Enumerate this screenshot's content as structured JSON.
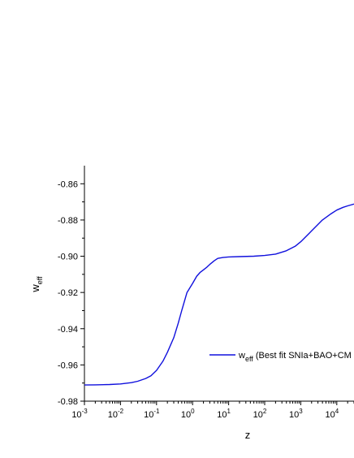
{
  "chart_data": {
    "type": "line",
    "xscale": "log",
    "xlim": [
      0.001,
      30000
    ],
    "ylim": [
      -0.98,
      -0.85
    ],
    "xlabel": "z",
    "ylabel_main": "w",
    "ylabel_sub": "eff",
    "x_tick_exponents": [
      "-3",
      "-2",
      "-1",
      "0",
      "1",
      "2",
      "3",
      "4"
    ],
    "y_ticks": [
      "-0.86",
      "-0.88",
      "-0.90",
      "-0.92",
      "-0.94",
      "-0.96",
      "-0.98"
    ],
    "y_tick_values": [
      -0.86,
      -0.88,
      -0.9,
      -0.92,
      -0.94,
      -0.96,
      -0.98
    ],
    "grid": false,
    "legend": {
      "position": "lower-right",
      "main": "w",
      "sub": "eff",
      "rest": " (Best fit SNIa+BAO+CM"
    },
    "series": [
      {
        "color": "#1010dd",
        "x": [
          0.001,
          0.002,
          0.005,
          0.01,
          0.02,
          0.03,
          0.05,
          0.07,
          0.1,
          0.15,
          0.2,
          0.3,
          0.4,
          0.5,
          0.7,
          1.0,
          1.3,
          1.6,
          2.0,
          2.5,
          3.0,
          4.0,
          5.0,
          7.0,
          10,
          20,
          50,
          100,
          200,
          400,
          700,
          1000,
          2000,
          4000,
          7000,
          10000,
          15000,
          20000,
          30000
        ],
        "y": [
          -0.9711,
          -0.971,
          -0.9708,
          -0.9705,
          -0.9698,
          -0.969,
          -0.9675,
          -0.966,
          -0.963,
          -0.958,
          -0.953,
          -0.945,
          -0.937,
          -0.93,
          -0.92,
          -0.915,
          -0.911,
          -0.909,
          -0.9075,
          -0.906,
          -0.9045,
          -0.9025,
          -0.9012,
          -0.9007,
          -0.9004,
          -0.9002,
          -0.9,
          -0.8996,
          -0.8988,
          -0.897,
          -0.8945,
          -0.892,
          -0.886,
          -0.88,
          -0.8765,
          -0.8745,
          -0.873,
          -0.8722,
          -0.8712
        ]
      }
    ]
  }
}
